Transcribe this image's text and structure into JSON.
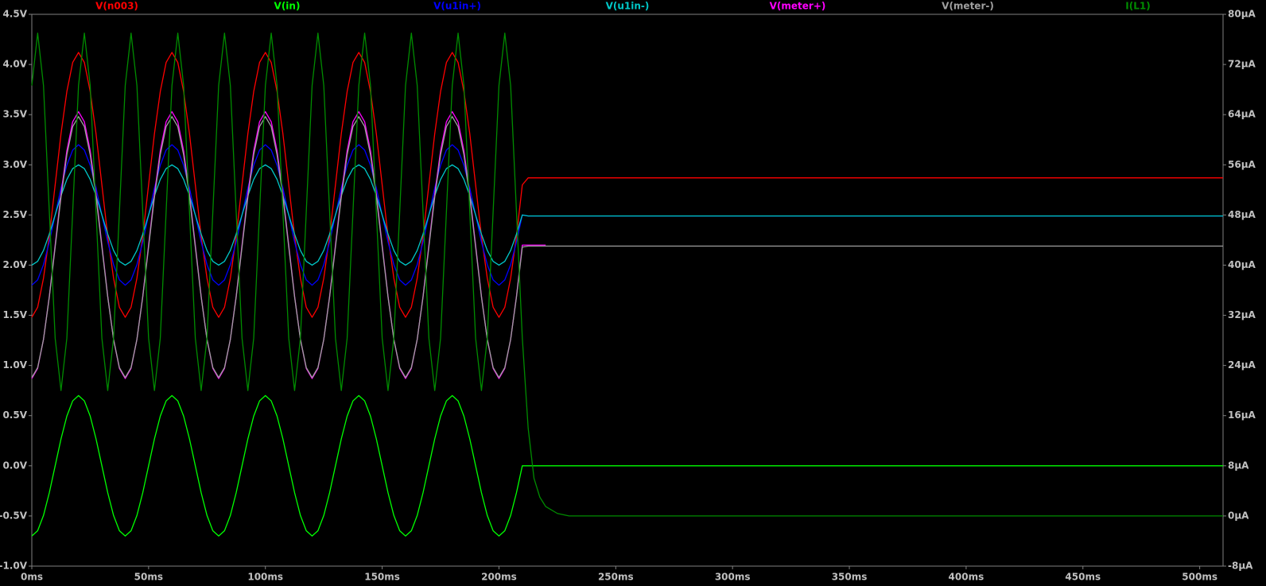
{
  "chart_data": {
    "type": "line",
    "x": [
      0,
      2.5,
      5,
      7.5,
      10,
      12.5,
      15,
      17.5,
      20,
      22.5,
      25,
      27.5,
      30,
      32.5,
      35,
      37.5,
      40,
      42.5,
      45,
      47.5,
      50,
      52.5,
      55,
      57.5,
      60,
      62.5,
      65,
      67.5,
      70,
      72.5,
      75,
      77.5,
      80,
      82.5,
      85,
      87.5,
      90,
      92.5,
      95,
      97.5,
      100,
      102.5,
      105,
      107.5,
      110,
      112.5,
      115,
      117.5,
      120,
      122.5,
      125,
      127.5,
      130,
      132.5,
      135,
      137.5,
      140,
      142.5,
      145,
      147.5,
      150,
      152.5,
      155,
      157.5,
      160,
      162.5,
      165,
      167.5,
      170,
      172.5,
      175,
      177.5,
      180,
      182.5,
      185,
      187.5,
      190,
      192.5,
      195,
      197.5,
      200,
      202.5,
      205,
      207.5,
      210,
      212.5,
      215,
      217.5,
      220,
      225,
      230,
      510
    ],
    "xlim": [
      0,
      510
    ],
    "xticks": [
      {
        "value": 0,
        "label": "0ms"
      },
      {
        "value": 50,
        "label": "50ms"
      },
      {
        "value": 100,
        "label": "100ms"
      },
      {
        "value": 150,
        "label": "150ms"
      },
      {
        "value": 200,
        "label": "200ms"
      },
      {
        "value": 250,
        "label": "250ms"
      },
      {
        "value": 300,
        "label": "300ms"
      },
      {
        "value": 350,
        "label": "350ms"
      },
      {
        "value": 400,
        "label": "400ms"
      },
      {
        "value": 450,
        "label": "450ms"
      },
      {
        "value": 500,
        "label": "500ms"
      }
    ],
    "ylim": [
      -1,
      4.5
    ],
    "yticks": [
      {
        "value": -1,
        "label": "-1.0V"
      },
      {
        "value": -0.5,
        "label": "-0.5V"
      },
      {
        "value": 0,
        "label": "0.0V"
      },
      {
        "value": 0.5,
        "label": "0.5V"
      },
      {
        "value": 1,
        "label": "1.0V"
      },
      {
        "value": 1.5,
        "label": "1.5V"
      },
      {
        "value": 2,
        "label": "2.0V"
      },
      {
        "value": 2.5,
        "label": "2.5V"
      },
      {
        "value": 3,
        "label": "3.0V"
      },
      {
        "value": 3.5,
        "label": "3.5V"
      },
      {
        "value": 4,
        "label": "4.0V"
      },
      {
        "value": 4.5,
        "label": "4.5V"
      }
    ],
    "y2lim": [
      -8,
      80
    ],
    "y2ticks": [
      {
        "value": -8,
        "label": "-8µA"
      },
      {
        "value": 0,
        "label": "0µA"
      },
      {
        "value": 8,
        "label": "8µA"
      },
      {
        "value": 16,
        "label": "16µA"
      },
      {
        "value": 24,
        "label": "24µA"
      },
      {
        "value": 32,
        "label": "32µA"
      },
      {
        "value": 40,
        "label": "40µA"
      },
      {
        "value": 48,
        "label": "48µA"
      },
      {
        "value": 56,
        "label": "56µA"
      },
      {
        "value": 64,
        "label": "64µA"
      },
      {
        "value": 72,
        "label": "72µA"
      },
      {
        "value": 80,
        "label": "80µA"
      }
    ],
    "series": [
      {
        "name": "V(n003)",
        "color": "#ff0000",
        "values": [
          1.48,
          1.58,
          1.87,
          2.29,
          2.8,
          3.31,
          3.73,
          4.02,
          4.12,
          4.02,
          3.73,
          3.31,
          2.8,
          2.29,
          1.87,
          1.58,
          1.48,
          1.58,
          1.87,
          2.29,
          2.8,
          3.31,
          3.73,
          4.02,
          4.12,
          4.02,
          3.73,
          3.31,
          2.8,
          2.29,
          1.87,
          1.58,
          1.48,
          1.58,
          1.87,
          2.29,
          2.8,
          3.31,
          3.73,
          4.02,
          4.12,
          4.02,
          3.73,
          3.31,
          2.8,
          2.29,
          1.87,
          1.58,
          1.48,
          1.58,
          1.87,
          2.29,
          2.8,
          3.31,
          3.73,
          4.02,
          4.12,
          4.02,
          3.73,
          3.31,
          2.8,
          2.29,
          1.87,
          1.58,
          1.48,
          1.58,
          1.87,
          2.29,
          2.8,
          3.31,
          3.73,
          4.02,
          4.12,
          4.02,
          3.73,
          3.31,
          2.8,
          2.29,
          1.87,
          1.58,
          1.48,
          1.58,
          1.87,
          2.29,
          2.8,
          2.87,
          2.87,
          2.87,
          2.87,
          2.87,
          2.87,
          2.87
        ]
      },
      {
        "name": "V(in)",
        "color": "#00ff00",
        "values": [
          -0.7,
          -0.647,
          -0.495,
          -0.268,
          0,
          0.268,
          0.495,
          0.647,
          0.7,
          0.647,
          0.495,
          0.268,
          0,
          -0.268,
          -0.495,
          -0.647,
          -0.7,
          -0.647,
          -0.495,
          -0.268,
          0,
          0.268,
          0.495,
          0.647,
          0.7,
          0.647,
          0.495,
          0.268,
          0,
          -0.268,
          -0.495,
          -0.647,
          -0.7,
          -0.647,
          -0.495,
          -0.268,
          0,
          0.268,
          0.495,
          0.647,
          0.7,
          0.647,
          0.495,
          0.268,
          0,
          -0.268,
          -0.495,
          -0.647,
          -0.7,
          -0.647,
          -0.495,
          -0.268,
          0,
          0.268,
          0.495,
          0.647,
          0.7,
          0.647,
          0.495,
          0.268,
          0,
          -0.268,
          -0.495,
          -0.647,
          -0.7,
          -0.647,
          -0.495,
          -0.268,
          0,
          0.268,
          0.495,
          0.647,
          0.7,
          0.647,
          0.495,
          0.268,
          0,
          -0.268,
          -0.495,
          -0.647,
          -0.7,
          -0.647,
          -0.495,
          -0.268,
          0,
          0,
          0,
          0,
          0,
          0,
          0,
          0
        ]
      },
      {
        "name": "V(u1in+)",
        "color": "#0000ff",
        "values": [
          1.8,
          1.853,
          2.005,
          2.232,
          2.5,
          2.768,
          2.995,
          3.147,
          3.2,
          3.147,
          2.995,
          2.768,
          2.5,
          2.232,
          2.005,
          1.853,
          1.8,
          1.853,
          2.005,
          2.232,
          2.5,
          2.768,
          2.995,
          3.147,
          3.2,
          3.147,
          2.995,
          2.768,
          2.5,
          2.232,
          2.005,
          1.853,
          1.8,
          1.853,
          2.005,
          2.232,
          2.5,
          2.768,
          2.995,
          3.147,
          3.2,
          3.147,
          2.995,
          2.768,
          2.5,
          2.232,
          2.005,
          1.853,
          1.8,
          1.853,
          2.005,
          2.232,
          2.5,
          2.768,
          2.995,
          3.147,
          3.2,
          3.147,
          2.995,
          2.768,
          2.5,
          2.232,
          2.005,
          1.853,
          1.8,
          1.853,
          2.005,
          2.232,
          2.5,
          2.768,
          2.995,
          3.147,
          3.2,
          3.147,
          2.995,
          2.768,
          2.5,
          2.232,
          2.005,
          1.853,
          1.8,
          1.853,
          2.005,
          2.232,
          2.5,
          2.49,
          2.49,
          2.49,
          2.49,
          2.49,
          2.49,
          2.49
        ]
      },
      {
        "name": "V(u1in-)",
        "color": "#00c8c8",
        "values": [
          2.0,
          2.038,
          2.147,
          2.309,
          2.5,
          2.692,
          2.854,
          2.962,
          3.0,
          2.962,
          2.854,
          2.692,
          2.5,
          2.309,
          2.147,
          2.038,
          2.0,
          2.038,
          2.147,
          2.309,
          2.5,
          2.692,
          2.854,
          2.962,
          3.0,
          2.962,
          2.854,
          2.692,
          2.5,
          2.309,
          2.147,
          2.038,
          2.0,
          2.038,
          2.147,
          2.309,
          2.5,
          2.692,
          2.854,
          2.962,
          3.0,
          2.962,
          2.854,
          2.692,
          2.5,
          2.309,
          2.147,
          2.038,
          2.0,
          2.038,
          2.147,
          2.309,
          2.5,
          2.692,
          2.854,
          2.962,
          3.0,
          2.962,
          2.854,
          2.692,
          2.5,
          2.309,
          2.147,
          2.038,
          2.0,
          2.038,
          2.147,
          2.309,
          2.5,
          2.692,
          2.854,
          2.962,
          3.0,
          2.962,
          2.854,
          2.692,
          2.5,
          2.309,
          2.147,
          2.038,
          2.0,
          2.038,
          2.147,
          2.309,
          2.5,
          2.49,
          2.49,
          2.49,
          2.49,
          2.49,
          2.49,
          2.49
        ]
      },
      {
        "name": "V(meter+)",
        "color": "#ff00ff",
        "values": [
          0.87,
          0.971,
          1.26,
          1.691,
          2.2,
          2.709,
          3.14,
          3.429,
          3.53,
          3.429,
          3.14,
          2.709,
          2.2,
          1.691,
          1.26,
          0.971,
          0.87,
          0.971,
          1.26,
          1.691,
          2.2,
          2.709,
          3.14,
          3.429,
          3.53,
          3.429,
          3.14,
          2.709,
          2.2,
          1.691,
          1.26,
          0.971,
          0.87,
          0.971,
          1.26,
          1.691,
          2.2,
          2.709,
          3.14,
          3.429,
          3.53,
          3.429,
          3.14,
          2.709,
          2.2,
          1.691,
          1.26,
          0.971,
          0.87,
          0.971,
          1.26,
          1.691,
          2.2,
          2.709,
          3.14,
          3.429,
          3.53,
          3.429,
          3.14,
          2.709,
          2.2,
          1.691,
          1.26,
          0.971,
          0.87,
          0.971,
          1.26,
          1.691,
          2.2,
          2.709,
          3.14,
          3.429,
          3.53,
          3.429,
          3.14,
          2.709,
          2.2,
          1.691,
          1.26,
          0.971,
          0.87,
          0.971,
          1.26,
          1.691,
          2.2,
          2.2,
          2.2,
          2.2,
          2.2,
          null,
          null,
          null
        ]
      },
      {
        "name": "V(meter-)",
        "color": "#a0a0a0",
        "values": [
          0.88,
          0.979,
          1.261,
          1.682,
          2.18,
          2.678,
          3.099,
          3.381,
          3.48,
          3.381,
          3.099,
          2.678,
          2.18,
          1.682,
          1.261,
          0.979,
          0.88,
          0.979,
          1.261,
          1.682,
          2.18,
          2.678,
          3.099,
          3.381,
          3.48,
          3.381,
          3.099,
          2.678,
          2.18,
          1.682,
          1.261,
          0.979,
          0.88,
          0.979,
          1.261,
          1.682,
          2.18,
          2.678,
          3.099,
          3.381,
          3.48,
          3.381,
          3.099,
          2.678,
          2.18,
          1.682,
          1.261,
          0.979,
          0.88,
          0.979,
          1.261,
          1.682,
          2.18,
          2.678,
          3.099,
          3.381,
          3.48,
          3.381,
          3.099,
          2.678,
          2.18,
          1.682,
          1.261,
          0.979,
          0.88,
          0.979,
          1.261,
          1.682,
          2.18,
          2.678,
          3.099,
          3.381,
          3.48,
          3.381,
          3.099,
          2.678,
          2.18,
          1.682,
          1.261,
          0.979,
          0.88,
          0.979,
          1.261,
          1.682,
          2.18,
          2.19,
          2.19,
          2.19,
          2.19,
          2.19,
          2.19,
          2.19
        ]
      },
      {
        "name": "I(L1)",
        "color": "#008c00",
        "axis": "y2",
        "values": [
          68.65,
          77,
          68.65,
          48.5,
          28.35,
          20,
          28.35,
          48.5,
          68.65,
          77,
          68.65,
          48.5,
          28.35,
          20,
          28.35,
          48.5,
          68.65,
          77,
          68.65,
          48.5,
          28.35,
          20,
          28.35,
          48.5,
          68.65,
          77,
          68.65,
          48.5,
          28.35,
          20,
          28.35,
          48.5,
          68.65,
          77,
          68.65,
          48.5,
          28.35,
          20,
          28.35,
          48.5,
          68.65,
          77,
          68.65,
          48.5,
          28.35,
          20,
          28.35,
          48.5,
          68.65,
          77,
          68.65,
          48.5,
          28.35,
          20,
          28.35,
          48.5,
          68.65,
          77,
          68.65,
          48.5,
          28.35,
          20,
          28.35,
          48.5,
          68.65,
          77,
          68.65,
          48.5,
          28.35,
          20,
          28.35,
          48.5,
          68.65,
          77,
          68.65,
          48.5,
          28.35,
          20,
          28.35,
          48.5,
          68.65,
          77,
          68.65,
          48.5,
          28.35,
          14,
          6,
          3,
          1.5,
          0.4,
          0,
          0
        ]
      }
    ]
  }
}
